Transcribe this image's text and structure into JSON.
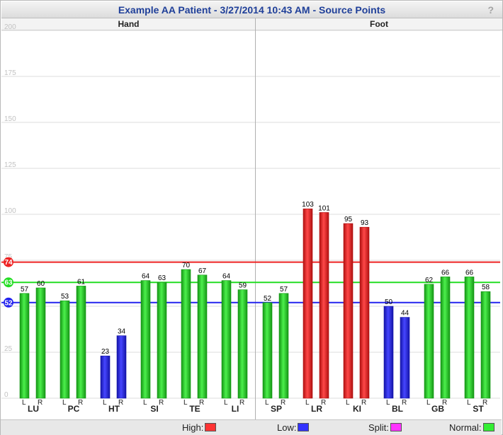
{
  "title": "Example AA Patient - 3/27/2014 10:43 AM - Source Points",
  "help_label": "?",
  "sections": [
    "Hand",
    "Foot"
  ],
  "legend": [
    {
      "label": "High:",
      "color": "#ff3333"
    },
    {
      "label": "Low:",
      "color": "#3333ff"
    },
    {
      "label": "Split:",
      "color": "#ff33ff"
    },
    {
      "label": "Normal:",
      "color": "#33ee33"
    }
  ],
  "chart_data": {
    "type": "bar",
    "ylim": [
      0,
      200
    ],
    "y_ticks": [
      0,
      25,
      50,
      75,
      100,
      125,
      150,
      175,
      200
    ],
    "grid": true,
    "reference_lines": [
      {
        "label": "74",
        "value": 74,
        "color": "#ee2222"
      },
      {
        "label": "63",
        "value": 63,
        "color": "#22dd22"
      },
      {
        "label": "52",
        "value": 52,
        "color": "#2222ee"
      }
    ],
    "meridians": [
      {
        "name": "LU",
        "section": "Hand",
        "L": 57,
        "R": 60
      },
      {
        "name": "PC",
        "section": "Hand",
        "L": 53,
        "R": 61
      },
      {
        "name": "HT",
        "section": "Hand",
        "L": 23,
        "R": 34
      },
      {
        "name": "SI",
        "section": "Hand",
        "L": 64,
        "R": 63
      },
      {
        "name": "TE",
        "section": "Hand",
        "L": 70,
        "R": 67
      },
      {
        "name": "LI",
        "section": "Hand",
        "L": 64,
        "R": 59
      },
      {
        "name": "SP",
        "section": "Foot",
        "L": 52,
        "R": 57
      },
      {
        "name": "LR",
        "section": "Foot",
        "L": 103,
        "R": 101
      },
      {
        "name": "KI",
        "section": "Foot",
        "L": 95,
        "R": 93
      },
      {
        "name": "BL",
        "section": "Foot",
        "L": 50,
        "R": 44
      },
      {
        "name": "GB",
        "section": "Foot",
        "L": 62,
        "R": 66
      },
      {
        "name": "ST",
        "section": "Foot",
        "L": 66,
        "R": 58
      }
    ],
    "side_labels": [
      "L",
      "R"
    ],
    "bar_colors": {
      "High": "#ff3333",
      "Low": "#3333ff",
      "Normal": "#33ee33"
    }
  }
}
